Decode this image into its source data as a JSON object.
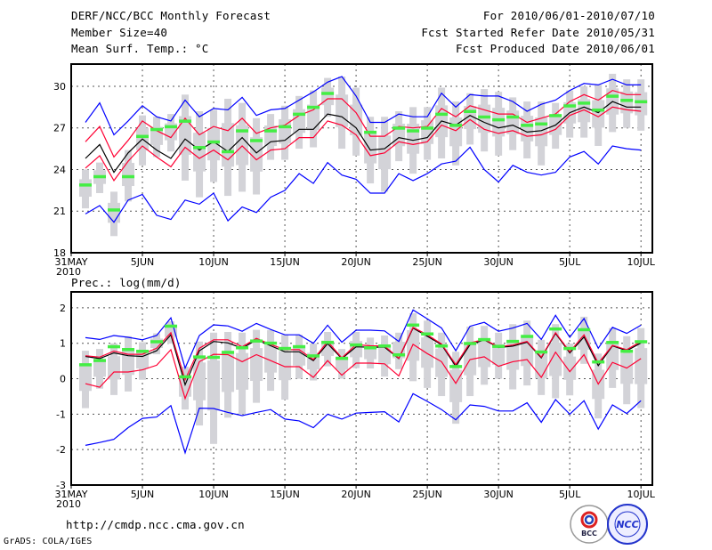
{
  "header": {
    "title": "DERF/NCC/BCC Monthly Forecast",
    "member_size": "Member Size=40",
    "variable": "Mean Surf. Temp.: °C",
    "for_period": "For 2010/06/01-2010/07/10",
    "started": "Fcst Started Refer Date 2010/05/31",
    "produced": "Fcst Produced Date 2010/06/01"
  },
  "footer": {
    "url": "http://cmdp.ncc.cma.gov.cn",
    "grads": "GrADS: COLA/IGES",
    "logo_bcc": "BCC",
    "logo_ncc": "NCC"
  },
  "colors": {
    "envelope": "#0000ff",
    "spread": "#ff0033",
    "mean": "#000000",
    "marker": "#44ee44",
    "range": "#d3d3d8"
  },
  "chart_data": [
    {
      "type": "line",
      "title": "Mean Surf. Temp.: °C",
      "x": "days since 2010-05-31 (1..40)",
      "xlim": [
        0,
        40.8
      ],
      "ylim": [
        18,
        31.6
      ],
      "yticks": [
        18,
        21,
        24,
        27,
        30
      ],
      "xticks": [
        {
          "v": 0,
          "label": "31MAY",
          "sub": "2010"
        },
        {
          "v": 5,
          "label": "5JUN"
        },
        {
          "v": 10,
          "label": "10JUN"
        },
        {
          "v": 15,
          "label": "15JUN"
        },
        {
          "v": 20,
          "label": "20JUN"
        },
        {
          "v": 25,
          "label": "25JUN"
        },
        {
          "v": 30,
          "label": "30JUN"
        },
        {
          "v": 35,
          "label": "5JUL"
        },
        {
          "v": 40,
          "label": "10JUL"
        }
      ],
      "grid": true,
      "range_low": [
        21.2,
        22.3,
        19.2,
        21.7,
        24.3,
        24.9,
        25.3,
        23.2,
        22.0,
        23.1,
        22.1,
        22.4,
        22.2,
        24.7,
        24.7,
        25.5,
        25.6,
        27.8,
        25.5,
        25.0,
        23.0,
        22.4,
        24.6,
        23.7,
        24.7,
        24.8,
        24.3,
        25.8,
        25.3,
        25.0,
        25.4,
        24.8,
        24.3,
        25.5,
        26.3,
        26.3,
        25.7,
        26.7,
        27.0,
        26.8
      ],
      "range_high": [
        24.0,
        24.5,
        22.4,
        25.4,
        27.9,
        27.8,
        28.0,
        29.4,
        28.2,
        28.3,
        29.1,
        28.8,
        27.7,
        28.0,
        28.6,
        29.3,
        29.7,
        30.6,
        30.7,
        29.9,
        27.8,
        27.8,
        28.2,
        28.5,
        28.5,
        29.9,
        28.9,
        29.5,
        29.8,
        29.6,
        29.2,
        28.9,
        28.9,
        28.8,
        29.7,
        30.0,
        30.1,
        30.9,
        30.5,
        30.5
      ],
      "marker": [
        22.9,
        23.5,
        21.1,
        23.5,
        26.4,
        26.9,
        27.1,
        27.5,
        25.6,
        26.0,
        25.3,
        26.8,
        26.1,
        26.8,
        27.1,
        28.0,
        28.5,
        29.5,
        null,
        null,
        26.7,
        null,
        27.0,
        26.8,
        27.0,
        28.0,
        27.2,
        28.2,
        27.8,
        27.6,
        27.8,
        27.2,
        27.3,
        27.9,
        28.6,
        28.8,
        28.3,
        29.3,
        29.0,
        28.9
      ],
      "series": [
        {
          "name": "mean",
          "color": "#000000",
          "values": [
            24.8,
            25.8,
            23.8,
            25.2,
            26.2,
            25.4,
            24.8,
            26.2,
            25.4,
            26.0,
            25.3,
            26.3,
            25.2,
            26.0,
            26.1,
            26.9,
            26.9,
            28.0,
            27.8,
            27.0,
            25.4,
            25.5,
            26.3,
            26.1,
            26.3,
            27.5,
            27.2,
            27.9,
            27.4,
            27.0,
            27.2,
            26.7,
            26.8,
            27.2,
            28.1,
            28.5,
            28.1,
            28.9,
            28.5,
            28.5
          ]
        },
        {
          "name": "upper-spread",
          "color": "#ff0033",
          "values": [
            26.0,
            27.1,
            24.9,
            26.1,
            27.5,
            26.8,
            26.3,
            27.7,
            26.5,
            27.1,
            26.8,
            27.7,
            26.6,
            27.0,
            27.2,
            27.9,
            28.3,
            29.1,
            29.1,
            28.1,
            26.4,
            26.4,
            27.1,
            27.0,
            27.1,
            28.4,
            27.8,
            28.6,
            28.3,
            28.0,
            28.0,
            27.4,
            27.7,
            28.0,
            28.9,
            29.4,
            29.0,
            29.7,
            29.4,
            29.4
          ]
        },
        {
          "name": "lower-spread",
          "color": "#ff0033",
          "values": [
            24.1,
            25.0,
            23.2,
            24.6,
            25.7,
            24.9,
            24.2,
            25.6,
            24.8,
            25.4,
            24.7,
            25.7,
            24.7,
            25.4,
            25.5,
            26.3,
            26.3,
            27.5,
            27.2,
            26.5,
            25.0,
            25.2,
            26.0,
            25.8,
            26.0,
            27.2,
            26.8,
            27.6,
            26.9,
            26.6,
            26.8,
            26.4,
            26.5,
            26.9,
            27.9,
            28.3,
            27.8,
            28.5,
            28.3,
            28.2
          ]
        },
        {
          "name": "upper-envelope",
          "color": "#0000ff",
          "values": [
            27.4,
            28.8,
            26.5,
            27.5,
            28.6,
            27.8,
            27.5,
            29.0,
            27.8,
            28.4,
            28.3,
            29.2,
            27.9,
            28.3,
            28.4,
            29.0,
            29.6,
            30.3,
            30.7,
            29.3,
            27.4,
            27.4,
            28.0,
            27.8,
            27.8,
            29.5,
            28.5,
            29.4,
            29.3,
            29.3,
            28.9,
            28.2,
            28.7,
            29.0,
            29.7,
            30.2,
            30.1,
            30.5,
            30.1,
            30.1
          ]
        },
        {
          "name": "lower-envelope",
          "color": "#0000ff",
          "values": [
            20.8,
            21.4,
            20.2,
            21.8,
            22.2,
            20.7,
            20.4,
            21.8,
            21.5,
            22.3,
            20.3,
            21.3,
            20.9,
            22.0,
            22.5,
            23.7,
            23.0,
            24.5,
            23.6,
            23.3,
            22.3,
            22.3,
            23.7,
            23.2,
            23.7,
            24.4,
            24.6,
            25.6,
            24.0,
            23.1,
            24.3,
            23.8,
            23.6,
            23.8,
            24.9,
            25.3,
            24.4,
            25.7,
            25.5,
            25.4
          ]
        }
      ]
    },
    {
      "type": "line",
      "title": "Prec.: log(mm/d)",
      "xlim": [
        0,
        40.8
      ],
      "ylim": [
        -3,
        2.45
      ],
      "yticks": [
        -3,
        -2,
        -1,
        0,
        1,
        2
      ],
      "xticks": [
        {
          "v": 0,
          "label": "31MAY",
          "sub": "2010"
        },
        {
          "v": 5,
          "label": "5JUN"
        },
        {
          "v": 10,
          "label": "10JUN"
        },
        {
          "v": 15,
          "label": "15JUN"
        },
        {
          "v": 20,
          "label": "20JUN"
        },
        {
          "v": 25,
          "label": "25JUN"
        },
        {
          "v": 30,
          "label": "30JUN"
        },
        {
          "v": 35,
          "label": "5JUL"
        },
        {
          "v": 40,
          "label": "10JUL"
        }
      ],
      "grid": true,
      "range_low": [
        -0.83,
        -0.28,
        -0.46,
        -0.36,
        -0.03,
        0.69,
        0.99,
        -0.87,
        -1.32,
        -1.84,
        -1.1,
        -1.0,
        -0.68,
        -0.34,
        -0.59,
        0.0,
        -0.05,
        0.35,
        0.0,
        0.3,
        0.29,
        0.06,
        0.27,
        -0.07,
        -0.26,
        -0.49,
        -1.27,
        -0.49,
        -0.17,
        0.0,
        -0.3,
        -0.19,
        -0.46,
        -0.55,
        -0.47,
        0.42,
        -1.12,
        -0.26,
        -0.72,
        -0.83
      ],
      "range_high": [
        0.79,
        0.84,
        1.0,
        1.2,
        1.03,
        1.28,
        1.62,
        0.34,
        1.05,
        1.3,
        1.32,
        1.3,
        1.38,
        1.37,
        1.24,
        1.24,
        0.99,
        1.32,
        0.84,
        1.32,
        1.16,
        1.22,
        1.3,
        1.85,
        1.64,
        1.3,
        0.76,
        1.47,
        1.49,
        1.3,
        1.54,
        1.64,
        1.1,
        1.54,
        0.99,
        1.75,
        0.71,
        1.43,
        1.2,
        1.43
      ],
      "marker": [
        0.4,
        0.52,
        0.91,
        0.83,
        0.78,
        1.05,
        1.49,
        0.06,
        0.62,
        0.61,
        0.75,
        0.88,
        1.07,
        1.01,
        0.86,
        0.91,
        0.65,
        1.03,
        0.58,
        0.96,
        0.88,
        0.93,
        0.68,
        1.52,
        1.27,
        0.93,
        0.35,
        1.0,
        1.11,
        0.92,
        1.06,
        1.2,
        0.76,
        1.41,
        0.86,
        1.39,
        0.48,
        1.03,
        0.78,
        1.05
      ],
      "series": [
        {
          "name": "mean",
          "color": "#000000",
          "values": [
            0.63,
            0.57,
            0.73,
            0.65,
            0.63,
            0.79,
            1.24,
            -0.17,
            0.79,
            1.05,
            1.01,
            0.86,
            1.1,
            0.93,
            0.76,
            0.76,
            0.51,
            0.99,
            0.57,
            0.9,
            0.89,
            0.89,
            0.57,
            1.43,
            1.2,
            0.96,
            0.35,
            0.96,
            1.1,
            0.88,
            0.92,
            1.03,
            0.59,
            1.28,
            0.73,
            1.18,
            0.37,
            0.93,
            0.79,
            1.01
          ]
        },
        {
          "name": "upper-spread",
          "color": "#ff0033",
          "values": [
            0.65,
            0.61,
            0.78,
            0.69,
            0.69,
            0.86,
            1.3,
            -0.03,
            0.86,
            1.1,
            1.1,
            0.9,
            1.14,
            0.97,
            0.82,
            0.82,
            0.54,
            1.05,
            0.59,
            0.96,
            0.93,
            0.92,
            0.58,
            1.45,
            1.24,
            0.98,
            0.4,
            1.01,
            1.11,
            0.9,
            0.95,
            1.05,
            0.61,
            1.3,
            0.76,
            1.24,
            0.44,
            0.94,
            0.82,
            1.05
          ]
        },
        {
          "name": "lower-spread",
          "color": "#ff0033",
          "values": [
            -0.14,
            -0.24,
            0.19,
            0.19,
            0.25,
            0.38,
            0.82,
            -0.56,
            0.48,
            0.69,
            0.68,
            0.48,
            0.68,
            0.51,
            0.34,
            0.34,
            0.04,
            0.51,
            0.1,
            0.44,
            0.44,
            0.42,
            0.08,
            0.97,
            0.71,
            0.48,
            -0.13,
            0.54,
            0.62,
            0.35,
            0.48,
            0.54,
            0.04,
            0.75,
            0.2,
            0.68,
            -0.15,
            0.46,
            0.3,
            0.57
          ]
        },
        {
          "name": "upper-envelope",
          "color": "#0000ff",
          "values": [
            1.16,
            1.11,
            1.22,
            1.17,
            1.1,
            1.22,
            1.72,
            0.3,
            1.22,
            1.52,
            1.49,
            1.34,
            1.56,
            1.39,
            1.24,
            1.24,
            1.0,
            1.51,
            1.03,
            1.37,
            1.37,
            1.35,
            1.05,
            1.94,
            1.69,
            1.43,
            0.79,
            1.48,
            1.59,
            1.34,
            1.43,
            1.56,
            1.11,
            1.79,
            1.17,
            1.7,
            0.86,
            1.45,
            1.28,
            1.51
          ]
        },
        {
          "name": "lower-envelope",
          "color": "#0000ff",
          "values": [
            -1.88,
            -1.8,
            -1.71,
            -1.38,
            -1.12,
            -1.08,
            -0.76,
            -2.09,
            -0.83,
            -0.84,
            -0.95,
            -1.04,
            -0.95,
            -0.87,
            -1.14,
            -1.19,
            -1.38,
            -1.0,
            -1.14,
            -0.97,
            -0.95,
            -0.93,
            -1.22,
            -0.42,
            -0.64,
            -0.87,
            -1.16,
            -0.74,
            -0.78,
            -0.91,
            -0.91,
            -0.68,
            -1.23,
            -0.59,
            -1.0,
            -0.62,
            -1.42,
            -0.74,
            -0.98,
            -0.62
          ]
        }
      ]
    }
  ]
}
